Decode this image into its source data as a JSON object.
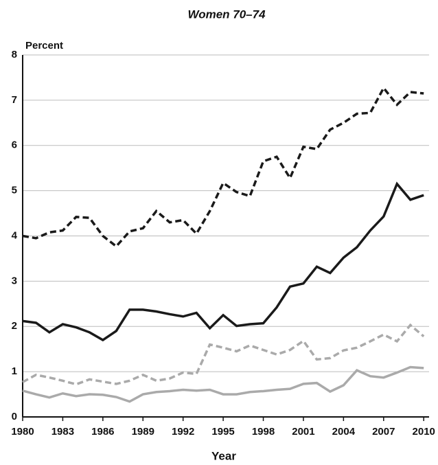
{
  "chart_data": {
    "type": "line",
    "title": "Women 70–74",
    "ylabel": "Percent",
    "xlabel": "Year",
    "x": [
      1980,
      1981,
      1982,
      1983,
      1984,
      1985,
      1986,
      1987,
      1988,
      1989,
      1990,
      1991,
      1992,
      1993,
      1994,
      1995,
      1996,
      1997,
      1998,
      1999,
      2000,
      2001,
      2002,
      2003,
      2004,
      2005,
      2006,
      2007,
      2008,
      2009,
      2010
    ],
    "series": [
      {
        "color": "#1a1a1a",
        "dashed": true,
        "values": [
          4.0,
          3.95,
          4.08,
          4.12,
          4.42,
          4.4,
          4.0,
          3.77,
          4.1,
          4.17,
          4.55,
          4.3,
          4.35,
          4.05,
          4.55,
          5.17,
          4.97,
          4.88,
          5.65,
          5.75,
          5.28,
          5.97,
          5.92,
          6.35,
          6.5,
          6.7,
          6.72,
          7.27,
          6.9,
          7.18,
          7.15
        ]
      },
      {
        "color": "#1a1a1a",
        "dashed": false,
        "values": [
          2.12,
          2.08,
          1.87,
          2.05,
          1.98,
          1.87,
          1.7,
          1.9,
          2.37,
          2.37,
          2.33,
          2.27,
          2.22,
          2.3,
          1.96,
          2.25,
          2.01,
          2.05,
          2.07,
          2.42,
          2.88,
          2.95,
          3.32,
          3.18,
          3.52,
          3.75,
          4.12,
          4.43,
          5.15,
          4.8,
          4.9
        ]
      },
      {
        "color": "#aaaaaa",
        "dashed": true,
        "values": [
          0.77,
          0.93,
          0.87,
          0.8,
          0.72,
          0.83,
          0.78,
          0.73,
          0.8,
          0.93,
          0.8,
          0.85,
          0.98,
          0.95,
          1.6,
          1.53,
          1.45,
          1.58,
          1.48,
          1.38,
          1.48,
          1.68,
          1.27,
          1.3,
          1.47,
          1.53,
          1.67,
          1.82,
          1.67,
          2.03,
          1.78
        ]
      },
      {
        "color": "#aaaaaa",
        "dashed": false,
        "values": [
          0.58,
          0.5,
          0.43,
          0.52,
          0.46,
          0.5,
          0.49,
          0.44,
          0.34,
          0.5,
          0.55,
          0.57,
          0.6,
          0.58,
          0.6,
          0.5,
          0.5,
          0.55,
          0.57,
          0.6,
          0.62,
          0.73,
          0.75,
          0.56,
          0.7,
          1.03,
          0.9,
          0.87,
          0.98,
          1.1,
          1.08
        ]
      }
    ],
    "xlim": [
      1980,
      2010.4
    ],
    "xticks": [
      1980,
      1983,
      1986,
      1989,
      1992,
      1995,
      1998,
      2001,
      2004,
      2007,
      2010
    ],
    "ylim": [
      0,
      8
    ],
    "yticks": [
      0,
      1,
      2,
      3,
      4,
      5,
      6,
      7,
      8
    ],
    "grid": true
  }
}
